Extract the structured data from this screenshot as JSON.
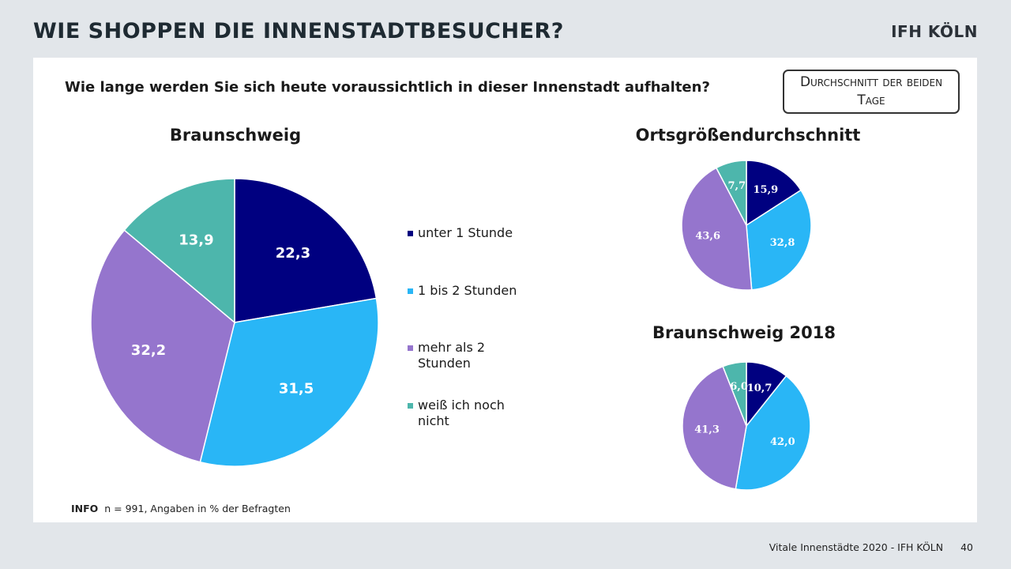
{
  "header": {
    "title": "WIE SHOPPEN DIE INNENSTADTBESUCHER?",
    "brand": "IFH KÖLN"
  },
  "question": "Wie lange werden Sie sich heute voraussichtlich in dieser Innenstadt aufhalten?",
  "average_box": "Durchschnitt der beiden Tage",
  "info": {
    "label": "INFO",
    "text": "n = 991, Angaben in % der Befragten"
  },
  "footer": {
    "source": "Vitale Innenstädte 2020 - IFH KÖLN",
    "page": "40"
  },
  "colors": {
    "unter_1_stunde": "#000080",
    "1_bis_2_stunden": "#29b6f6",
    "mehr_als_2_stunden": "#9575cd",
    "weiss_ich_noch_nicht": "#4db6ac"
  },
  "legend": [
    {
      "label": "unter 1 Stunde",
      "color": "#000080"
    },
    {
      "label": "1 bis 2 Stunden",
      "color": "#29b6f6"
    },
    {
      "label": "mehr als 2 Stunden",
      "color": "#9575cd"
    },
    {
      "label": "weiß ich noch nicht",
      "color": "#4db6ac"
    }
  ],
  "chart_data": [
    {
      "type": "pie",
      "title": "Braunschweig",
      "categories": [
        "unter 1 Stunde",
        "1 bis 2 Stunden",
        "mehr als 2 Stunden",
        "weiß ich noch nicht"
      ],
      "values": [
        22.3,
        31.5,
        32.2,
        13.9
      ],
      "labels": [
        "22,3",
        "31,5",
        "32,2",
        "13,9"
      ],
      "legend": "right"
    },
    {
      "type": "pie",
      "title": "Ortsgrößendurchschnitt",
      "categories": [
        "unter 1 Stunde",
        "1 bis 2 Stunden",
        "mehr als 2 Stunden",
        "weiß ich noch nicht"
      ],
      "values": [
        15.9,
        32.8,
        43.6,
        7.7
      ],
      "labels": [
        "15,9",
        "32,8",
        "43,6",
        "7,7"
      ]
    },
    {
      "type": "pie",
      "title": "Braunschweig  2018",
      "categories": [
        "unter 1 Stunde",
        "1 bis 2 Stunden",
        "mehr als 2 Stunden",
        "weiß ich noch nicht"
      ],
      "values": [
        10.7,
        42.0,
        41.3,
        6.0
      ],
      "labels": [
        "10,7",
        "42,0",
        "41,3",
        "6,0"
      ]
    }
  ]
}
